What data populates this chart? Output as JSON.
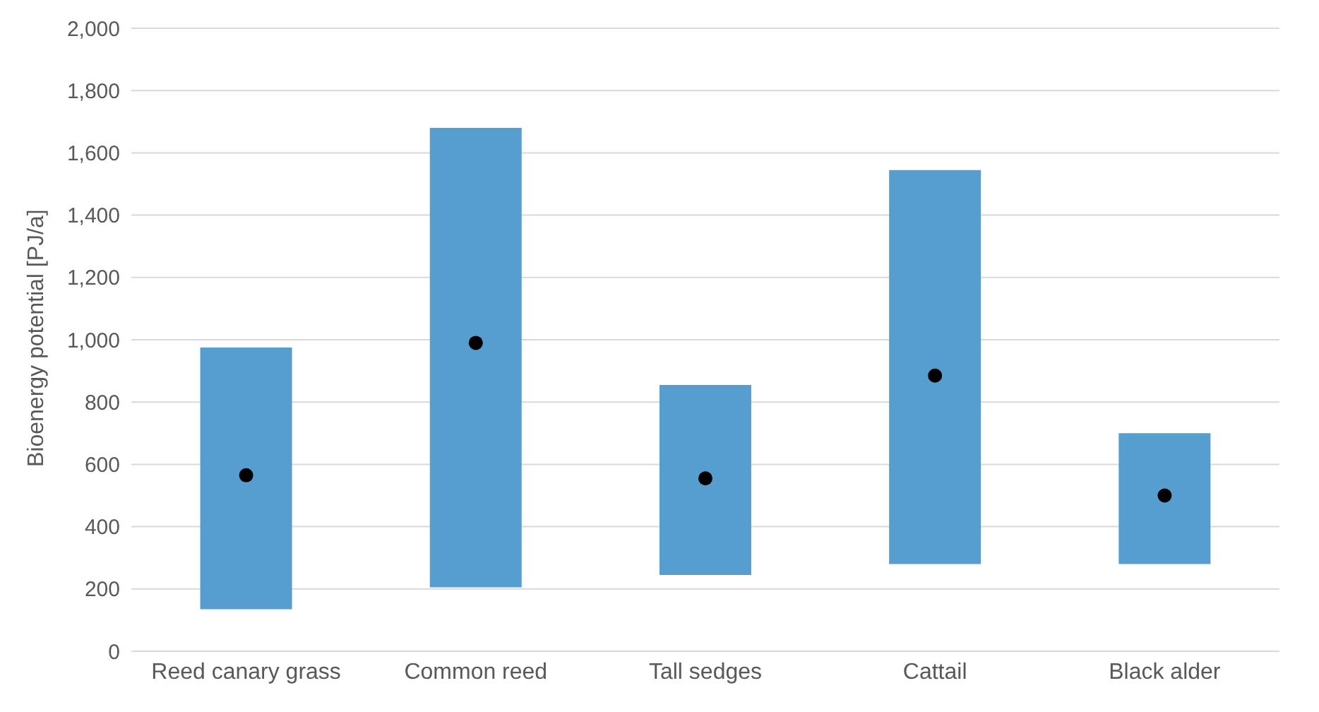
{
  "chart_data": {
    "type": "bar",
    "ylabel": "Bioenergy potential [PJ/a]",
    "categories": [
      "Reed canary grass",
      "Common reed",
      "Tall sedges",
      "Cattail",
      "Black alder"
    ],
    "series": [
      {
        "color": "#569ecf",
        "base": [
          135,
          205,
          245,
          280,
          280
        ],
        "values": [
          840,
          1475,
          610,
          1265,
          420
        ]
      },
      {
        "type": "scatter",
        "color": "#000000",
        "x": [
          "Reed canary grass",
          "Common reed",
          "Tall sedges",
          "Cattail",
          "Black alder"
        ],
        "values": [
          565,
          990,
          555,
          885,
          500
        ],
        "marker": "circle"
      }
    ],
    "ylim": [
      0,
      2000
    ],
    "yticks": [
      {
        "value": 0,
        "label": "0"
      },
      {
        "value": 200,
        "label": "200"
      },
      {
        "value": 400,
        "label": "400"
      },
      {
        "value": 600,
        "label": "600"
      },
      {
        "value": 800,
        "label": "800"
      },
      {
        "value": 1000,
        "label": "1,000"
      },
      {
        "value": 1200,
        "label": "1,200"
      },
      {
        "value": 1400,
        "label": "1,400"
      },
      {
        "value": 1600,
        "label": "1,600"
      },
      {
        "value": 1800,
        "label": "1,800"
      },
      {
        "value": 2000,
        "label": "2,000"
      }
    ],
    "grid": "y",
    "legend": false
  }
}
